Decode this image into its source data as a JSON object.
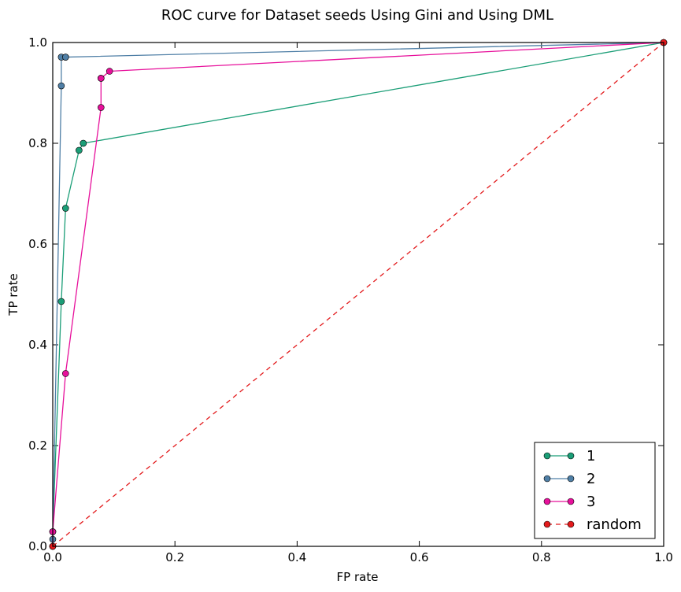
{
  "chart_data": {
    "type": "line",
    "title": "ROC curve for Dataset seeds Using Gini and Using DML",
    "xlabel": "FP rate",
    "ylabel": "TP rate",
    "xlim": [
      0.0,
      1.0
    ],
    "ylim": [
      0.0,
      1.0
    ],
    "xticks": [
      "0.0",
      "0.2",
      "0.4",
      "0.6",
      "0.8",
      "1.0"
    ],
    "yticks": [
      "0.0",
      "0.2",
      "0.4",
      "0.6",
      "0.8",
      "1.0"
    ],
    "grid": false,
    "legend_position": "lower-right",
    "series": [
      {
        "name": "1",
        "color": "#1b9e77",
        "style": "solid",
        "x": [
          0.0,
          0.0,
          0.014,
          0.021,
          0.043,
          0.05,
          0.05,
          1.0
        ],
        "y": [
          0.0,
          0.029,
          0.486,
          0.671,
          0.786,
          0.8,
          0.8,
          1.0
        ]
      },
      {
        "name": "2",
        "color": "#4f7fa6",
        "style": "solid",
        "x": [
          0.0,
          0.0,
          0.014,
          0.014,
          0.021,
          0.021,
          1.0
        ],
        "y": [
          0.0,
          0.014,
          0.914,
          0.971,
          0.971,
          0.971,
          1.0
        ]
      },
      {
        "name": "3",
        "color": "#e7109b",
        "style": "solid",
        "x": [
          0.0,
          0.0,
          0.021,
          0.079,
          0.079,
          0.079,
          0.093,
          1.0
        ],
        "y": [
          0.0,
          0.029,
          0.343,
          0.871,
          0.929,
          0.929,
          0.943,
          1.0
        ]
      },
      {
        "name": "random",
        "color": "#e31a1c",
        "style": "dashed",
        "x": [
          0.0,
          1.0
        ],
        "y": [
          0.0,
          1.0
        ]
      }
    ]
  }
}
